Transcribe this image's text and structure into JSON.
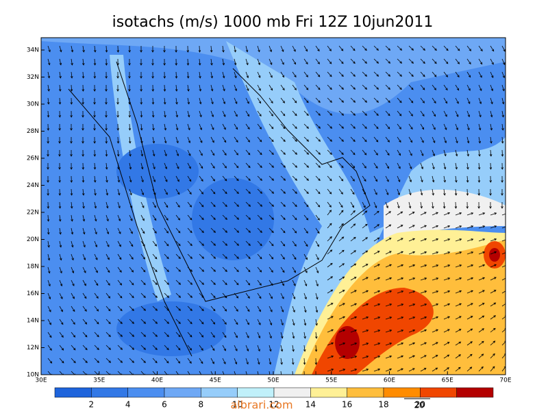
{
  "title": "isotachs (m/s) 1000 mb Fri 12Z 10jun2011",
  "lat_labels": [
    "10N",
    "12N",
    "14N",
    "16N",
    "18N",
    "20N",
    "22N",
    "24N",
    "26N",
    "28N",
    "30N",
    "32N",
    "34N"
  ],
  "lon_labels": [
    "30E",
    "35E",
    "40E",
    "45E",
    "50E",
    "55E",
    "60E",
    "65E",
    "70E"
  ],
  "colorbar": {
    "labels": [
      "2",
      "4",
      "6",
      "8",
      "10",
      "12",
      "14",
      "16",
      "18",
      "20"
    ],
    "colors": [
      "#1e64dc",
      "#3278e6",
      "#4b8ef0",
      "#6ea8f5",
      "#96cdfa",
      "#c0f0fa",
      "#f0f0f0",
      "#fff096",
      "#ffbe3c",
      "#ff8c00",
      "#f04600",
      "#b40000"
    ]
  },
  "watermark": "albrari.com",
  "reference_vector": "20"
}
